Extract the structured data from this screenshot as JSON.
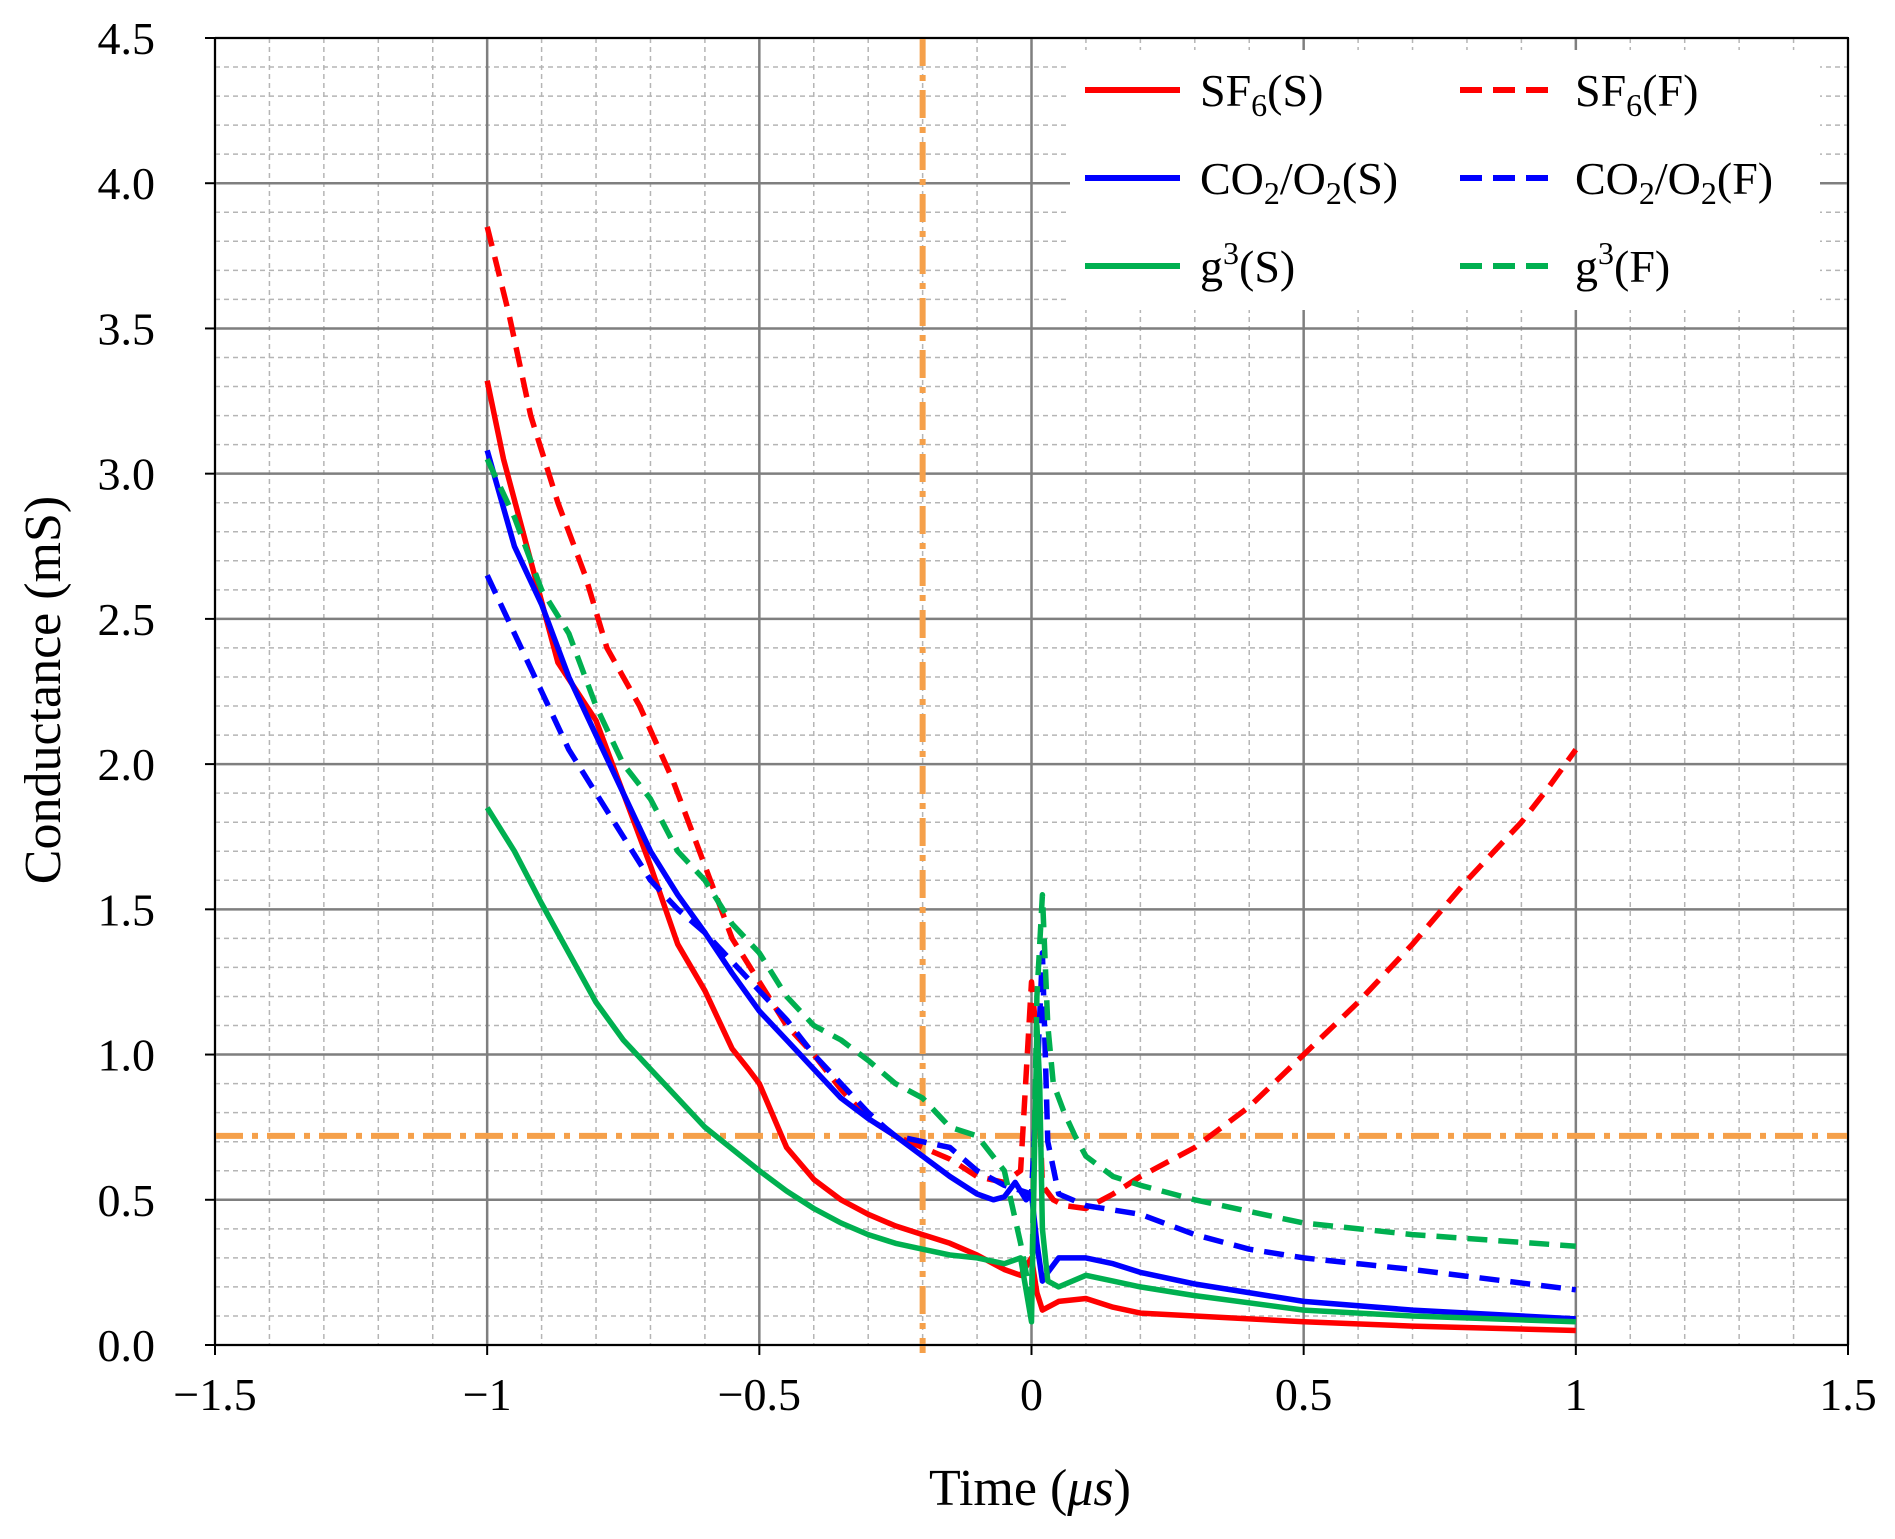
{
  "chart_data": {
    "type": "line",
    "title": "",
    "xlabel": "Time (μs)",
    "xlabel_prefix": "Time (",
    "xlabel_unit": "μs",
    "xlabel_suffix": ")",
    "ylabel": "Conductance (mS)",
    "xlim": [
      -1.5,
      1.5
    ],
    "ylim": [
      0,
      4.5
    ],
    "x_major_ticks": [
      -1.5,
      -1,
      -0.5,
      0,
      0.5,
      1,
      1.5
    ],
    "x_tick_labels": [
      "−1.5",
      "−1",
      "−0.5",
      "0",
      "0.5",
      "1",
      "1.5"
    ],
    "x_minor_step": 0.1,
    "y_major_ticks": [
      0,
      0.5,
      1,
      1.5,
      2,
      2.5,
      3,
      3.5,
      4,
      4.5
    ],
    "y_tick_labels": [
      "0.0",
      "0.5",
      "1.0",
      "1.5",
      "2.0",
      "2.5",
      "3.0",
      "3.5",
      "4.0",
      "4.5"
    ],
    "y_minor_step": 0.1,
    "grid": true,
    "legend_position": "top-right",
    "reference_lines": [
      {
        "orientation": "vertical",
        "x": -0.2,
        "color": "#f5a04a",
        "style": "dash-dot"
      },
      {
        "orientation": "horizontal",
        "y": 0.72,
        "color": "#f5a04a",
        "style": "dash-dot"
      }
    ],
    "series": [
      {
        "name": "SF6(S)",
        "label_main": "SF",
        "label_sub": "6",
        "label_tail": "(S)",
        "color": "#ff0000",
        "dash": "solid",
        "x": [
          -1,
          -0.97,
          -0.92,
          -0.87,
          -0.8,
          -0.75,
          -0.7,
          -0.65,
          -0.6,
          -0.55,
          -0.52,
          -0.5,
          -0.45,
          -0.4,
          -0.35,
          -0.3,
          -0.25,
          -0.2,
          -0.15,
          -0.1,
          -0.05,
          -0.02,
          0,
          0.01,
          0.02,
          0.05,
          0.1,
          0.15,
          0.2,
          0.3,
          0.5,
          0.7,
          1
        ],
        "y": [
          3.32,
          3.05,
          2.7,
          2.35,
          2.15,
          1.9,
          1.65,
          1.38,
          1.22,
          1.02,
          0.95,
          0.9,
          0.68,
          0.57,
          0.5,
          0.45,
          0.41,
          0.38,
          0.35,
          0.31,
          0.26,
          0.24,
          0.3,
          0.18,
          0.12,
          0.15,
          0.16,
          0.13,
          0.11,
          0.1,
          0.08,
          0.065,
          0.05
        ]
      },
      {
        "name": "SF6(F)",
        "label_main": "SF",
        "label_sub": "6",
        "label_tail": "(F)",
        "color": "#ff0000",
        "dash": "dashed",
        "x": [
          -1,
          -0.96,
          -0.92,
          -0.87,
          -0.82,
          -0.78,
          -0.72,
          -0.66,
          -0.6,
          -0.55,
          -0.5,
          -0.45,
          -0.4,
          -0.35,
          -0.3,
          -0.25,
          -0.2,
          -0.15,
          -0.1,
          -0.05,
          -0.02,
          0,
          0.01,
          0.02,
          0.04,
          0.06,
          0.1,
          0.15,
          0.2,
          0.3,
          0.4,
          0.5,
          0.6,
          0.7,
          0.8,
          0.9,
          0.95,
          1
        ],
        "y": [
          3.85,
          3.55,
          3.2,
          2.9,
          2.65,
          2.4,
          2.2,
          1.95,
          1.65,
          1.4,
          1.25,
          1.1,
          1.0,
          0.88,
          0.78,
          0.72,
          0.68,
          0.64,
          0.58,
          0.56,
          0.6,
          1.25,
          1.05,
          0.55,
          0.5,
          0.48,
          0.47,
          0.52,
          0.58,
          0.68,
          0.82,
          1.0,
          1.18,
          1.38,
          1.6,
          1.8,
          1.92,
          2.05
        ]
      },
      {
        "name": "CO2/O2(S)",
        "label_main": "CO",
        "label_sub": "2",
        "label_mid": "/O",
        "label_sub2": "2",
        "label_tail": "(S)",
        "color": "#0000ff",
        "dash": "solid",
        "x": [
          -1,
          -0.95,
          -0.9,
          -0.85,
          -0.8,
          -0.75,
          -0.7,
          -0.65,
          -0.6,
          -0.55,
          -0.5,
          -0.45,
          -0.4,
          -0.35,
          -0.3,
          -0.25,
          -0.2,
          -0.15,
          -0.1,
          -0.07,
          -0.05,
          -0.03,
          -0.02,
          -0.01,
          0,
          0.01,
          0.02,
          0.03,
          0.05,
          0.1,
          0.15,
          0.2,
          0.3,
          0.5,
          0.7,
          1
        ],
        "y": [
          3.08,
          2.75,
          2.55,
          2.3,
          2.1,
          1.9,
          1.7,
          1.55,
          1.42,
          1.28,
          1.15,
          1.05,
          0.95,
          0.85,
          0.78,
          0.72,
          0.65,
          0.58,
          0.52,
          0.5,
          0.51,
          0.56,
          0.53,
          0.5,
          0.52,
          0.35,
          0.22,
          0.25,
          0.3,
          0.3,
          0.28,
          0.25,
          0.21,
          0.15,
          0.12,
          0.09
        ]
      },
      {
        "name": "CO2/O2(F)",
        "label_main": "CO",
        "label_sub": "2",
        "label_mid": "/O",
        "label_sub2": "2",
        "label_tail": "(F)",
        "color": "#0000ff",
        "dash": "dashed",
        "x": [
          -1,
          -0.95,
          -0.9,
          -0.85,
          -0.8,
          -0.75,
          -0.7,
          -0.65,
          -0.6,
          -0.55,
          -0.5,
          -0.45,
          -0.4,
          -0.35,
          -0.3,
          -0.27,
          -0.25,
          -0.2,
          -0.15,
          -0.1,
          -0.05,
          0,
          0.01,
          0.02,
          0.03,
          0.05,
          0.1,
          0.2,
          0.3,
          0.4,
          0.5,
          0.7,
          1
        ],
        "y": [
          2.65,
          2.45,
          2.25,
          2.05,
          1.9,
          1.75,
          1.6,
          1.5,
          1.42,
          1.32,
          1.22,
          1.12,
          1.0,
          0.9,
          0.8,
          0.75,
          0.72,
          0.7,
          0.68,
          0.6,
          0.55,
          0.52,
          0.9,
          1.35,
          0.7,
          0.52,
          0.48,
          0.45,
          0.38,
          0.33,
          0.3,
          0.26,
          0.19
        ]
      },
      {
        "name": "g3(S)",
        "label_main": "g",
        "label_sup": "3",
        "label_tail": "(S)",
        "color": "#00b050",
        "dash": "solid",
        "x": [
          -1,
          -0.95,
          -0.9,
          -0.85,
          -0.8,
          -0.75,
          -0.7,
          -0.6,
          -0.5,
          -0.45,
          -0.4,
          -0.35,
          -0.3,
          -0.25,
          -0.2,
          -0.15,
          -0.1,
          -0.05,
          -0.02,
          0,
          0.005,
          0.01,
          0.015,
          0.02,
          0.03,
          0.05,
          0.1,
          0.15,
          0.2,
          0.3,
          0.5,
          0.7,
          1
        ],
        "y": [
          1.85,
          1.7,
          1.52,
          1.35,
          1.18,
          1.05,
          0.95,
          0.75,
          0.6,
          0.53,
          0.47,
          0.42,
          0.38,
          0.35,
          0.33,
          0.31,
          0.3,
          0.28,
          0.3,
          0.08,
          0.6,
          1.1,
          0.9,
          0.4,
          0.22,
          0.2,
          0.24,
          0.22,
          0.2,
          0.17,
          0.12,
          0.1,
          0.08
        ]
      },
      {
        "name": "g3(F)",
        "label_main": "g",
        "label_sup": "3",
        "label_tail": "(F)",
        "color": "#00b050",
        "dash": "dashed",
        "x": [
          -1,
          -0.95,
          -0.9,
          -0.85,
          -0.8,
          -0.75,
          -0.7,
          -0.65,
          -0.6,
          -0.55,
          -0.5,
          -0.45,
          -0.4,
          -0.35,
          -0.3,
          -0.25,
          -0.2,
          -0.15,
          -0.1,
          -0.05,
          -0.02,
          0,
          0.01,
          0.02,
          0.03,
          0.04,
          0.06,
          0.08,
          0.1,
          0.15,
          0.2,
          0.3,
          0.5,
          0.7,
          1
        ],
        "y": [
          3.05,
          2.85,
          2.6,
          2.45,
          2.2,
          2.0,
          1.88,
          1.7,
          1.6,
          1.45,
          1.35,
          1.2,
          1.1,
          1.05,
          0.98,
          0.9,
          0.85,
          0.75,
          0.72,
          0.6,
          0.35,
          0.15,
          1.2,
          1.55,
          1.1,
          0.9,
          0.8,
          0.72,
          0.65,
          0.58,
          0.55,
          0.5,
          0.42,
          0.38,
          0.34
        ]
      }
    ]
  }
}
